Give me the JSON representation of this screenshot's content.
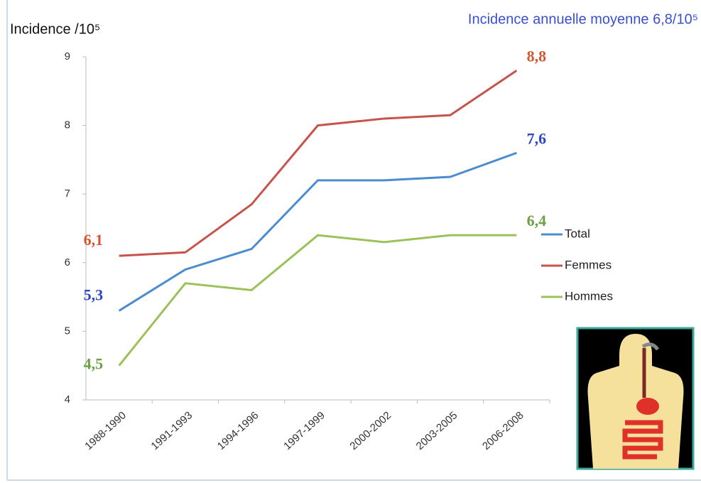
{
  "chart_data": {
    "type": "line",
    "title": "Incidence annuelle moyenne 6,8/10⁵",
    "y_label": "Incidence /10⁵",
    "categories": [
      "1988-1990",
      "1991-1993",
      "1994-1996",
      "1997-1999",
      "2000-2002",
      "2003-2005",
      "2006-2008"
    ],
    "series": [
      {
        "name": "Total",
        "color": "#4a8ccf",
        "label_color": "#2b46c8",
        "values": [
          5.3,
          5.9,
          6.2,
          7.2,
          7.2,
          7.25,
          7.6
        ],
        "value_labels": [
          "5,3",
          null,
          null,
          null,
          null,
          null,
          "7,6"
        ]
      },
      {
        "name": "Femmes",
        "color": "#c8534c",
        "label_color": "#d2552d",
        "values": [
          6.1,
          6.15,
          6.85,
          8.0,
          8.1,
          8.15,
          8.8
        ],
        "value_labels": [
          "6,1",
          null,
          null,
          null,
          null,
          null,
          "8,8"
        ]
      },
      {
        "name": "Hommes",
        "color": "#9dc15a",
        "label_color": "#6aa143",
        "values": [
          4.5,
          5.7,
          5.6,
          6.4,
          6.3,
          6.4,
          6.4
        ],
        "value_labels": [
          "4,5",
          null,
          null,
          null,
          null,
          null,
          "6,4"
        ]
      }
    ],
    "ylim": [
      4,
      9
    ],
    "yticks": [
      4,
      5,
      6,
      7,
      8,
      9
    ],
    "grid": false,
    "legend": "right"
  }
}
